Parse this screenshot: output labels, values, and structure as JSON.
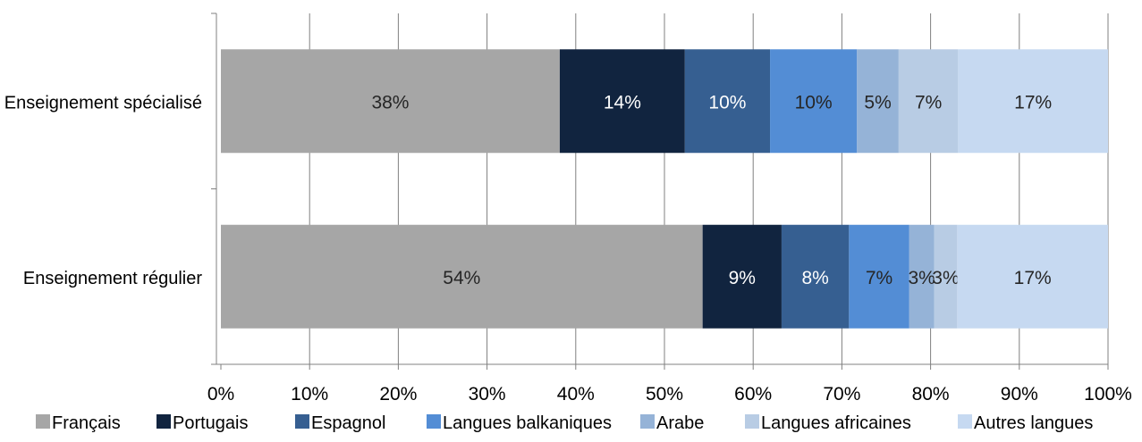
{
  "chart_data": {
    "type": "bar",
    "orientation": "horizontal",
    "stacked": "percent",
    "categories": [
      "Enseignement spécialisé",
      "Enseignement régulier"
    ],
    "series": [
      {
        "name": "Français",
        "values": [
          38.2,
          54.3
        ],
        "labels": [
          "38%",
          "54%"
        ],
        "color": "#a6a6a6",
        "label_color": "#262626"
      },
      {
        "name": "Portugais",
        "values": [
          14.1,
          8.9
        ],
        "labels": [
          "14%",
          "9%"
        ],
        "color": "#11243f",
        "label_color": "#ffffff"
      },
      {
        "name": "Espagnol",
        "values": [
          9.6,
          7.6
        ],
        "labels": [
          "10%",
          "8%"
        ],
        "color": "#365f91",
        "label_color": "#ffffff"
      },
      {
        "name": "Langues balkaniques",
        "values": [
          9.8,
          6.8
        ],
        "labels": [
          "10%",
          "7%"
        ],
        "color": "#538dd5",
        "label_color": "#262626"
      },
      {
        "name": "Arabe",
        "values": [
          4.7,
          2.8
        ],
        "labels": [
          "5%",
          "3%"
        ],
        "color": "#95b3d7",
        "label_color": "#262626"
      },
      {
        "name": "Langues africaines",
        "values": [
          6.7,
          2.6
        ],
        "labels": [
          "7%",
          "3%"
        ],
        "color": "#b8cce4",
        "label_color": "#262626"
      },
      {
        "name": "Autres langues",
        "values": [
          16.9,
          17.0
        ],
        "labels": [
          "17%",
          "17%"
        ],
        "color": "#c6d9f1",
        "label_color": "#262626"
      }
    ],
    "xlim": [
      0,
      100
    ],
    "xticks": [
      "0%",
      "10%",
      "20%",
      "30%",
      "40%",
      "50%",
      "60%",
      "70%",
      "80%",
      "90%",
      "100%"
    ],
    "grid": "vertical",
    "legend_position": "bottom",
    "title": "",
    "xlabel": "",
    "ylabel": ""
  }
}
